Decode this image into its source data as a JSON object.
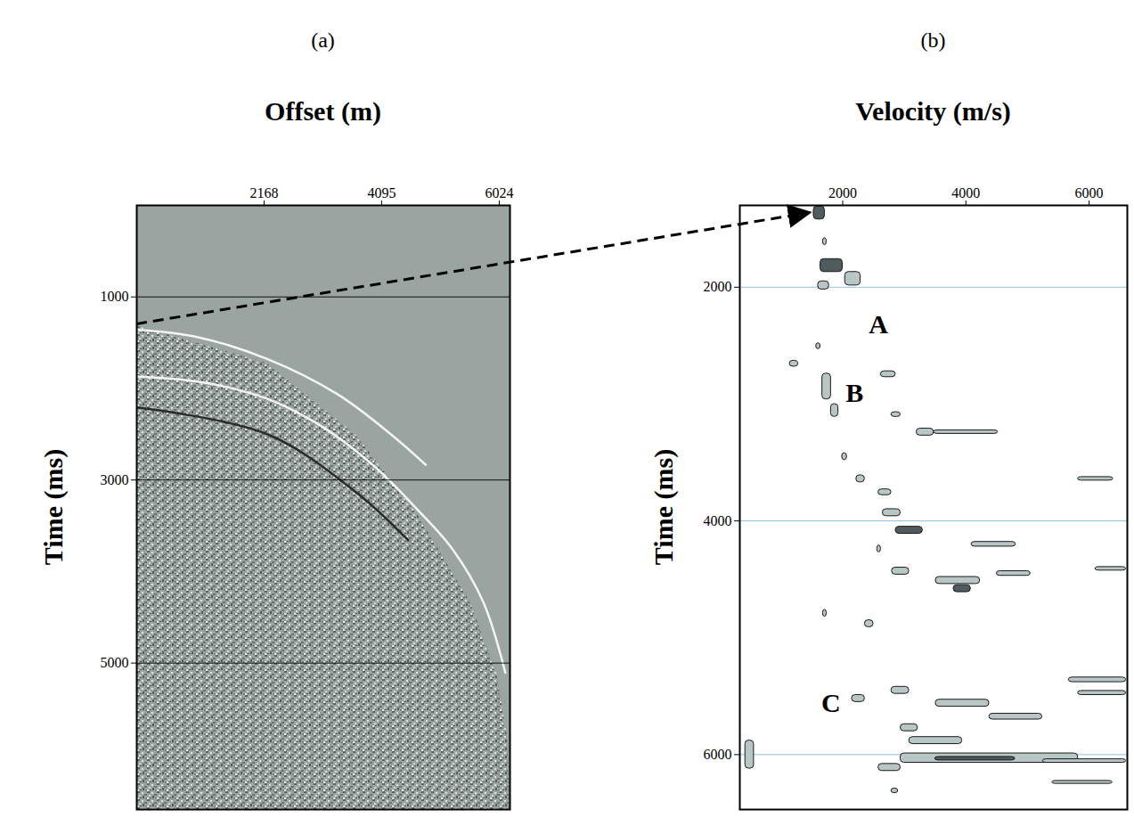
{
  "chart_data": [
    {
      "type": "seismic_gather",
      "panel": "(a)",
      "xlabel": "Offset (m)",
      "ylabel": "Time (ms)",
      "xlim": [
        80,
        6200
      ],
      "xticks": [
        2168,
        4095,
        6024
      ],
      "ylim": [
        0,
        6600
      ],
      "yticks": [
        1000,
        3000,
        5000
      ],
      "grid": true,
      "data_edge": {
        "offset": [
          80,
          2211,
          3660,
          4675,
          5544,
          5979,
          6153,
          6200
        ],
        "time": [
          1319,
          1724,
          2497,
          3367,
          4333,
          5106,
          5782,
          6458
        ]
      },
      "series": [
        {
          "color": "#f4f4f4",
          "offset": [
            81,
            1052,
            2211,
            3371,
            4240,
            4820
          ],
          "time": [
            1357,
            1435,
            1676,
            2063,
            2497,
            2835
          ]
        },
        {
          "color": "#f4f4f4",
          "offset": [
            81,
            1197,
            2211,
            3081,
            3950,
            4675,
            5254,
            5761,
            6124
          ],
          "time": [
            1869,
            1937,
            2111,
            2401,
            2835,
            3318,
            3753,
            4333,
            5106
          ]
        },
        {
          "color": "#2b2b2b",
          "offset": [
            81,
            2211,
            3660,
            4530
          ],
          "time": [
            2208,
            2497,
            3125,
            3657
          ]
        }
      ]
    },
    {
      "type": "velocity_spectrum",
      "panel": "(b)",
      "xlabel": "Velocity (m/s)",
      "ylabel": "Time (ms)",
      "xlim": [
        330,
        6620
      ],
      "xticks": [
        2000,
        4000,
        6000
      ],
      "ylim": [
        1300,
        6470
      ],
      "yticks": [
        2000,
        4000,
        6000
      ],
      "grid": true,
      "picks": [
        {
          "time": [
            1310,
            1420
          ],
          "velocity": [
            1530,
            1710
          ],
          "level": 2
        },
        {
          "time": [
            1580,
            1640
          ],
          "velocity": [
            1680,
            1740
          ],
          "level": 1
        },
        {
          "time": [
            1760,
            1870
          ],
          "velocity": [
            1640,
            2000
          ],
          "level": 2
        },
        {
          "time": [
            1870,
            1985
          ],
          "velocity": [
            2040,
            2290
          ],
          "level": 1
        },
        {
          "time": [
            1950,
            2020
          ],
          "velocity": [
            1600,
            1780
          ],
          "level": 1
        },
        {
          "time": [
            2480,
            2530
          ],
          "velocity": [
            1570,
            1640
          ],
          "level": 1
        },
        {
          "time": [
            2630,
            2680
          ],
          "velocity": [
            1140,
            1280
          ],
          "level": 1
        },
        {
          "time": [
            2740,
            2960
          ],
          "velocity": [
            1670,
            1810
          ],
          "level": 1
        },
        {
          "time": [
            3000,
            3110
          ],
          "velocity": [
            1810,
            1930
          ],
          "level": 1
        },
        {
          "time": [
            2720,
            2770
          ],
          "velocity": [
            2620,
            2860
          ],
          "level": 1
        },
        {
          "time": [
            3070,
            3110
          ],
          "velocity": [
            2790,
            2940
          ],
          "level": 1
        },
        {
          "time": [
            3210,
            3270
          ],
          "velocity": [
            3200,
            3480
          ],
          "level": 1
        },
        {
          "time": [
            3225,
            3255
          ],
          "velocity": [
            3480,
            4520
          ],
          "level": 1
        },
        {
          "time": [
            3420,
            3480
          ],
          "velocity": [
            1990,
            2070
          ],
          "level": 1
        },
        {
          "time": [
            3610,
            3670
          ],
          "velocity": [
            2220,
            2360
          ],
          "level": 1
        },
        {
          "time": [
            3730,
            3780
          ],
          "velocity": [
            2580,
            2790
          ],
          "level": 1
        },
        {
          "time": [
            3625,
            3655
          ],
          "velocity": [
            5820,
            6390
          ],
          "level": 1
        },
        {
          "time": [
            3900,
            3960
          ],
          "velocity": [
            2650,
            2940
          ],
          "level": 1
        },
        {
          "time": [
            4050,
            4110
          ],
          "velocity": [
            2860,
            3300
          ],
          "level": 2
        },
        {
          "time": [
            4210,
            4270
          ],
          "velocity": [
            2560,
            2620
          ],
          "level": 1
        },
        {
          "time": [
            4180,
            4220
          ],
          "velocity": [
            4090,
            4810
          ],
          "level": 1
        },
        {
          "time": [
            4400,
            4460
          ],
          "velocity": [
            2800,
            3080
          ],
          "level": 1
        },
        {
          "time": [
            4480,
            4540
          ],
          "velocity": [
            3510,
            4230
          ],
          "level": 1
        },
        {
          "time": [
            4550,
            4610
          ],
          "velocity": [
            3800,
            4080
          ],
          "level": 2
        },
        {
          "time": [
            4430,
            4470
          ],
          "velocity": [
            4500,
            5050
          ],
          "level": 1
        },
        {
          "time": [
            4395,
            4425
          ],
          "velocity": [
            6100,
            6600
          ],
          "level": 1
        },
        {
          "time": [
            4760,
            4820
          ],
          "velocity": [
            1680,
            1740
          ],
          "level": 1
        },
        {
          "time": [
            4850,
            4910
          ],
          "velocity": [
            2360,
            2500
          ],
          "level": 1
        },
        {
          "time": [
            5490,
            5550
          ],
          "velocity": [
            2150,
            2360
          ],
          "level": 1
        },
        {
          "time": [
            5420,
            5480
          ],
          "velocity": [
            2790,
            3080
          ],
          "level": 1
        },
        {
          "time": [
            5530,
            5590
          ],
          "velocity": [
            3510,
            4380
          ],
          "level": 1
        },
        {
          "time": [
            5650,
            5700
          ],
          "velocity": [
            4380,
            5240
          ],
          "level": 1
        },
        {
          "time": [
            5340,
            5380
          ],
          "velocity": [
            5670,
            6600
          ],
          "level": 1
        },
        {
          "time": [
            5455,
            5490
          ],
          "velocity": [
            5820,
            6600
          ],
          "level": 1
        },
        {
          "time": [
            5740,
            5800
          ],
          "velocity": [
            2940,
            3220
          ],
          "level": 1
        },
        {
          "time": [
            5850,
            5910
          ],
          "velocity": [
            3080,
            3940
          ],
          "level": 1
        },
        {
          "time": [
            5990,
            6070
          ],
          "velocity": [
            2940,
            5820
          ],
          "level": 1
        },
        {
          "time": [
            6020,
            6050
          ],
          "velocity": [
            3500,
            4800
          ],
          "level": 2
        },
        {
          "time": [
            6040,
            6070
          ],
          "velocity": [
            5250,
            6600
          ],
          "level": 1
        },
        {
          "time": [
            5880,
            6120
          ],
          "velocity": [
            420,
            560
          ],
          "level": 1
        },
        {
          "time": [
            6080,
            6140
          ],
          "velocity": [
            2580,
            2940
          ],
          "level": 1
        },
        {
          "time": [
            6290,
            6330
          ],
          "velocity": [
            2790,
            2900
          ],
          "level": 1
        },
        {
          "time": [
            6225,
            6250
          ],
          "velocity": [
            5400,
            6380
          ],
          "level": 1
        }
      ],
      "annotations": [
        {
          "text": "A",
          "velocity": 2580,
          "time": 2320
        },
        {
          "text": "B",
          "velocity": 2190,
          "time": 2910
        },
        {
          "text": "C",
          "velocity": 1810,
          "time": 5560
        }
      ]
    }
  ]
}
